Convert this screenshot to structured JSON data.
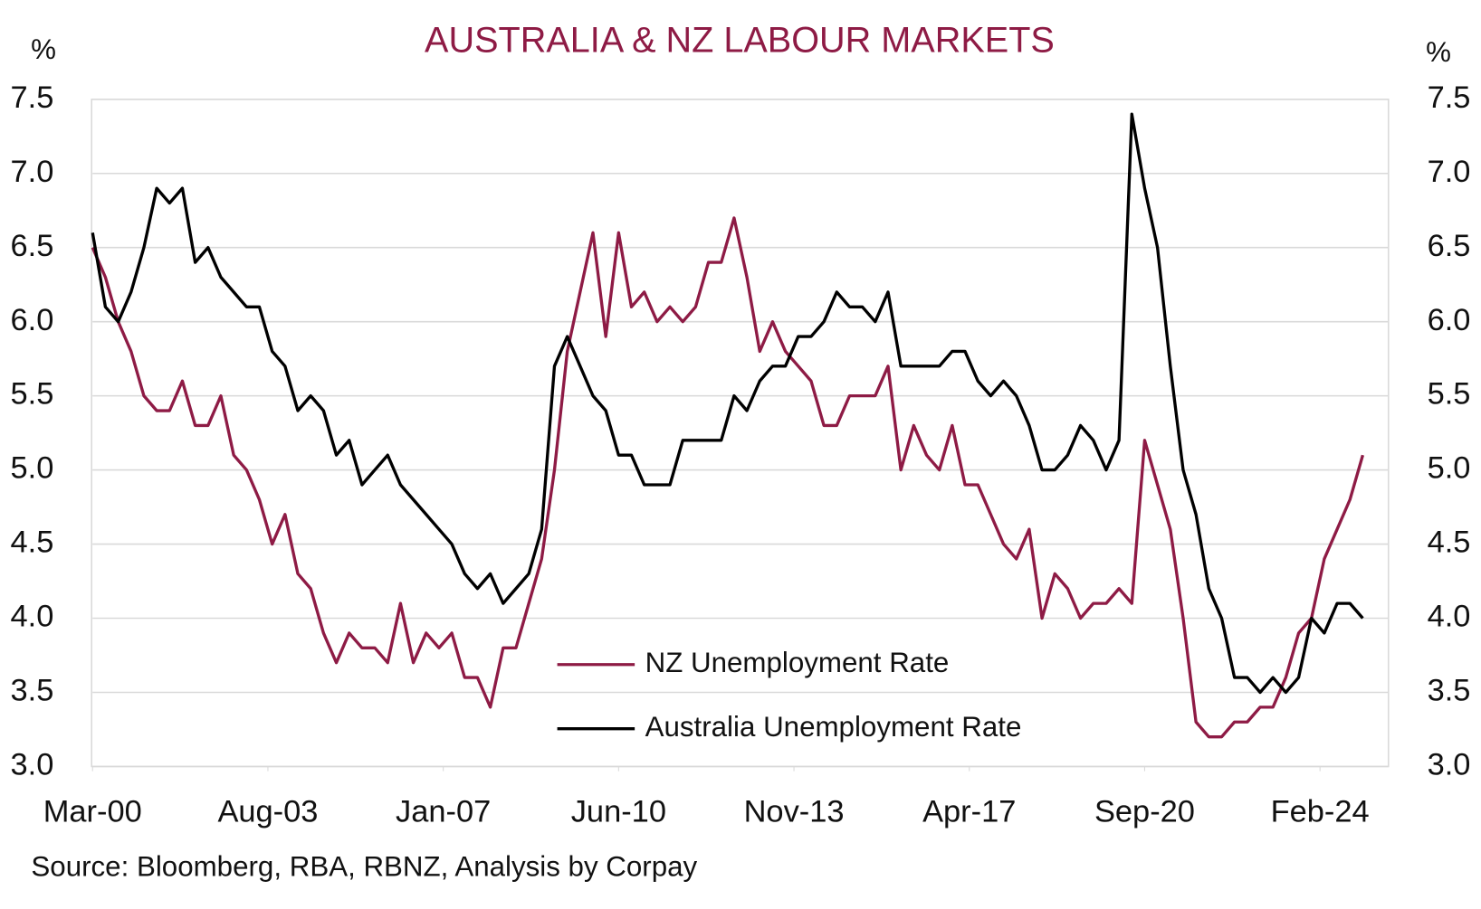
{
  "chart_data": {
    "type": "line",
    "title": "AUSTRALIA & NZ LABOUR MARKETS",
    "y_label": "%",
    "y2_label": "%",
    "source": "Source: Bloomberg, RBA, RBNZ, Analysis by Corpay",
    "x": [
      "Mar-00",
      "Jun-00",
      "Sep-00",
      "Dec-00",
      "Mar-01",
      "Jun-01",
      "Sep-01",
      "Dec-01",
      "Mar-02",
      "Jun-02",
      "Sep-02",
      "Dec-02",
      "Mar-03",
      "Jun-03",
      "Sep-03",
      "Dec-03",
      "Mar-04",
      "Jun-04",
      "Sep-04",
      "Dec-04",
      "Mar-05",
      "Jun-05",
      "Sep-05",
      "Dec-05",
      "Mar-06",
      "Jun-06",
      "Sep-06",
      "Dec-06",
      "Mar-07",
      "Jun-07",
      "Sep-07",
      "Dec-07",
      "Mar-08",
      "Jun-08",
      "Sep-08",
      "Dec-08",
      "Mar-09",
      "Jun-09",
      "Sep-09",
      "Dec-09",
      "Mar-10",
      "Jun-10",
      "Sep-10",
      "Dec-10",
      "Mar-11",
      "Jun-11",
      "Sep-11",
      "Dec-11",
      "Mar-12",
      "Jun-12",
      "Sep-12",
      "Dec-12",
      "Mar-13",
      "Jun-13",
      "Sep-13",
      "Dec-13",
      "Mar-14",
      "Jun-14",
      "Sep-14",
      "Dec-14",
      "Mar-15",
      "Jun-15",
      "Sep-15",
      "Dec-15",
      "Mar-16",
      "Jun-16",
      "Sep-16",
      "Dec-16",
      "Mar-17",
      "Jun-17",
      "Sep-17",
      "Dec-17",
      "Mar-18",
      "Jun-18",
      "Sep-18",
      "Dec-18",
      "Mar-19",
      "Jun-19",
      "Sep-19",
      "Dec-19",
      "Mar-20",
      "Jun-20",
      "Sep-20",
      "Dec-20",
      "Mar-21",
      "Jun-21",
      "Sep-21",
      "Dec-21",
      "Mar-22",
      "Jun-22",
      "Sep-22",
      "Dec-22",
      "Mar-23",
      "Jun-23",
      "Sep-23",
      "Dec-23",
      "Mar-24",
      "Jun-24",
      "Sep-24",
      "Dec-24"
    ],
    "series": [
      {
        "name": "NZ Unemployment Rate",
        "color": "#8e1b45",
        "axis": "y",
        "values": [
          6.5,
          6.3,
          6.0,
          5.8,
          5.5,
          5.4,
          5.4,
          5.6,
          5.3,
          5.3,
          5.5,
          5.1,
          5.0,
          4.8,
          4.5,
          4.7,
          4.3,
          4.2,
          3.9,
          3.7,
          3.9,
          3.8,
          3.8,
          3.7,
          4.1,
          3.7,
          3.9,
          3.8,
          3.9,
          3.6,
          3.6,
          3.4,
          3.8,
          3.8,
          4.1,
          4.4,
          5.0,
          5.8,
          6.2,
          6.6,
          5.9,
          6.6,
          6.1,
          6.2,
          6.0,
          6.1,
          6.0,
          6.1,
          6.4,
          6.4,
          6.7,
          6.3,
          5.8,
          6.0,
          5.8,
          5.7,
          5.6,
          5.3,
          5.3,
          5.5,
          5.5,
          5.5,
          5.7,
          5.0,
          5.3,
          5.1,
          5.0,
          5.3,
          4.9,
          4.9,
          4.7,
          4.5,
          4.4,
          4.6,
          4.0,
          4.3,
          4.2,
          4.0,
          4.1,
          4.1,
          4.2,
          4.1,
          5.2,
          4.9,
          4.6,
          4.0,
          3.3,
          3.2,
          3.2,
          3.3,
          3.3,
          3.4,
          3.4,
          3.6,
          3.9,
          4.0,
          4.4,
          4.6,
          4.8,
          5.1
        ]
      },
      {
        "name": "Australia Unemployment Rate",
        "color": "#000000",
        "axis": "y",
        "values": [
          6.6,
          6.1,
          6.0,
          6.2,
          6.5,
          6.9,
          6.8,
          6.9,
          6.4,
          6.5,
          6.3,
          6.2,
          6.1,
          6.1,
          5.8,
          5.7,
          5.4,
          5.5,
          5.4,
          5.1,
          5.2,
          4.9,
          5.0,
          5.1,
          4.9,
          4.8,
          4.7,
          4.6,
          4.5,
          4.3,
          4.2,
          4.3,
          4.1,
          4.2,
          4.3,
          4.6,
          5.7,
          5.9,
          5.7,
          5.5,
          5.4,
          5.1,
          5.1,
          4.9,
          4.9,
          4.9,
          5.2,
          5.2,
          5.2,
          5.2,
          5.5,
          5.4,
          5.6,
          5.7,
          5.7,
          5.9,
          5.9,
          6.0,
          6.2,
          6.1,
          6.1,
          6.0,
          6.2,
          5.7,
          5.7,
          5.7,
          5.7,
          5.8,
          5.8,
          5.6,
          5.5,
          5.6,
          5.5,
          5.3,
          5.0,
          5.0,
          5.1,
          5.3,
          5.2,
          5.0,
          5.2,
          7.4,
          6.9,
          6.5,
          5.7,
          5.0,
          4.7,
          4.2,
          4.0,
          3.6,
          3.6,
          3.5,
          3.6,
          3.5,
          3.6,
          4.0,
          3.9,
          4.1,
          4.1,
          4.0
        ]
      }
    ],
    "xlim": [
      "Mar-00",
      "Jun-25"
    ],
    "xticks": [
      "Mar-00",
      "Aug-03",
      "Jan-07",
      "Jun-10",
      "Nov-13",
      "Apr-17",
      "Sep-20",
      "Feb-24"
    ],
    "ylim": [
      3.0,
      7.5
    ],
    "yticks": [
      {
        "value": 3.0,
        "label": "3.0"
      },
      {
        "value": 3.5,
        "label": "3.5"
      },
      {
        "value": 4.0,
        "label": "4.0"
      },
      {
        "value": 4.5,
        "label": "4.5"
      },
      {
        "value": 5.0,
        "label": "5.0"
      },
      {
        "value": 5.5,
        "label": "5.5"
      },
      {
        "value": 6.0,
        "label": "6.0"
      },
      {
        "value": 6.5,
        "label": "6.5"
      },
      {
        "value": 7.0,
        "label": "7.0"
      },
      {
        "value": 7.5,
        "label": "7.5"
      }
    ],
    "y2lim": [
      3.0,
      7.5
    ],
    "y2ticks": [
      {
        "value": 3.0,
        "label": "3.0"
      },
      {
        "value": 3.5,
        "label": "3.5"
      },
      {
        "value": 4.0,
        "label": "4.0"
      },
      {
        "value": 4.5,
        "label": "4.5"
      },
      {
        "value": 5.0,
        "label": "5.0"
      },
      {
        "value": 5.5,
        "label": "5.5"
      },
      {
        "value": 6.0,
        "label": "6.0"
      },
      {
        "value": 6.5,
        "label": "6.5"
      },
      {
        "value": 7.0,
        "label": "7.0"
      },
      {
        "value": 7.5,
        "label": "7.5"
      }
    ],
    "grid": true,
    "legend": "lower center"
  }
}
